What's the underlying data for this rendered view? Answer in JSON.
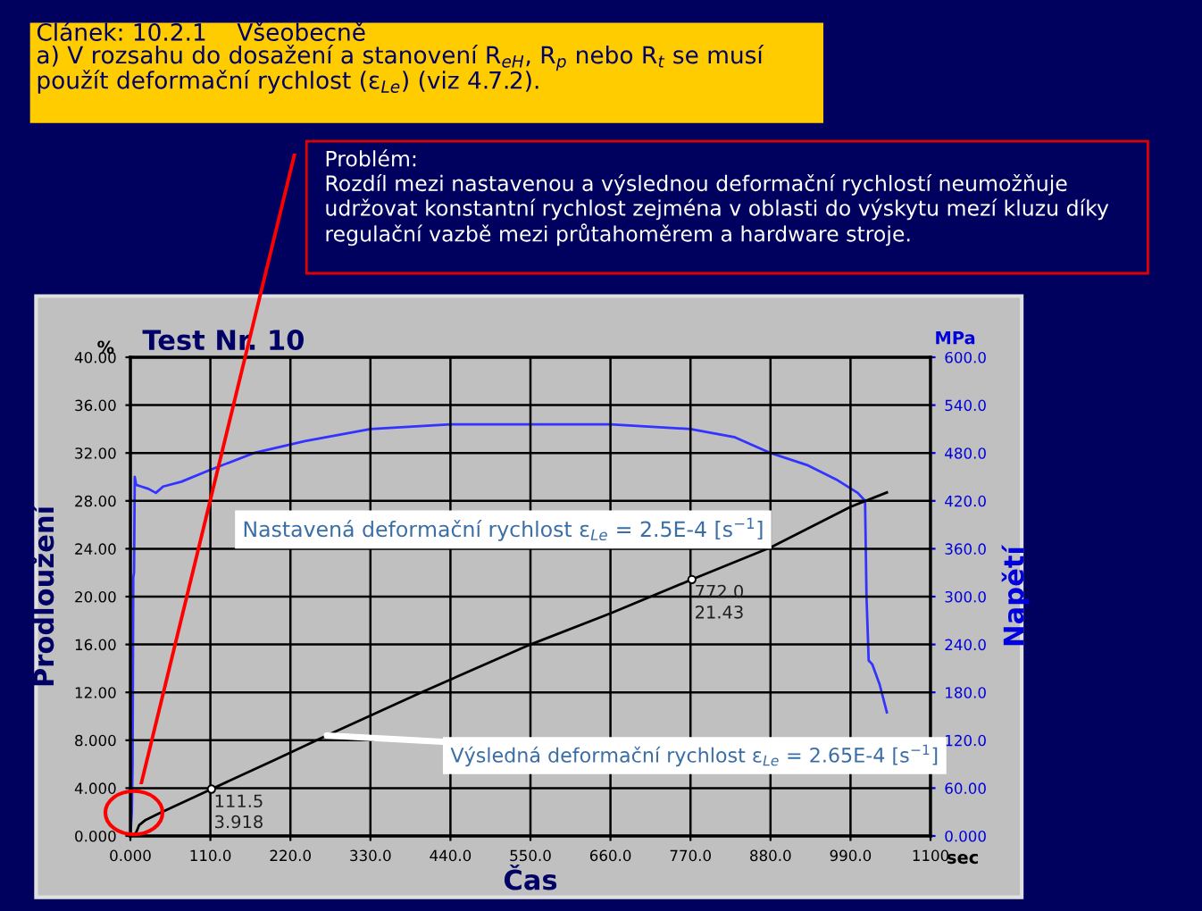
{
  "chart_data": {
    "type": "line",
    "title": "Test Nr. 10",
    "subtitle": "Článek: 10.2.1    Všeobecně\na) V rozsahu do dosažení a stanovení R$_{eH}$, R$_{p}$ nebo R$_{t}$ se musí\npoužít deformační rychlost (ε$_{Le}$) (viz 4.7.2).",
    "xlabel": "Čas",
    "ylabel": "Prodloužení",
    "y2label": "Napětí",
    "annotations": [
      "Problém:\nRozdíl mezi nastavenou a výslednou deformační rychlostí neumožňuje\nudržovat konstantní rychlost zejména v oblasti do výskytu mezí kluzu díky\nregulační vazbě mezi průtahoměrem a hardware stroje.",
      "%",
      "MPa",
      "sec",
      {
        "text": "111.5\n3.918",
        "x": 111.5,
        "y": 3.918
      },
      {
        "text": "772.0\n21.43",
        "x": 772,
        "y": 21.43
      },
      "Nastavená deformační rychlost ε$_{Le}$ = 2.5E-4 [s$^{−1}$]",
      {
        "text": "Výsledná deformační rychlost ε$_{Le}$ = 2.65E-4 [s$^{−1}$]",
        "x": 270,
        "y": 8.4
      }
    ],
    "series": [
      {
        "color": "#000000",
        "x": [
          0,
          3,
          8,
          12,
          20,
          40,
          111.5,
          200,
          270,
          400,
          550,
          660,
          772,
          880,
          990,
          1040
        ],
        "values": [
          0,
          0,
          0.3,
          0.9,
          1.3,
          1.9,
          3.918,
          6.4,
          8.4,
          12,
          16,
          18.6,
          21.43,
          24.1,
          27.5,
          28.7
        ]
      },
      {
        "color": "#3333ff",
        "axis": "y2",
        "x": [
          0,
          2,
          3,
          4,
          5,
          6,
          8,
          15,
          25,
          35,
          45,
          70,
          110,
          170,
          240,
          330,
          440,
          550,
          660,
          770,
          830,
          880,
          930,
          970,
          1000,
          1010,
          1012,
          1015,
          1020,
          1030,
          1040
        ],
        "values": [
          0,
          30,
          90,
          324,
          330,
          450,
          440,
          438,
          435,
          430,
          438,
          444,
          459,
          480,
          495,
          510,
          516,
          516,
          516,
          510,
          500,
          480,
          465,
          447,
          430,
          420,
          300,
          220,
          215,
          190,
          155
        ]
      }
    ],
    "xlim": [
      0,
      1100
    ],
    "xticks": [
      {
        "value": 0,
        "label": "0.000"
      },
      {
        "value": 110,
        "label": "110.0"
      },
      {
        "value": 220,
        "label": "220.0"
      },
      {
        "value": 330,
        "label": "330.0"
      },
      {
        "value": 440,
        "label": "440.0"
      },
      {
        "value": 550,
        "label": "550.0"
      },
      {
        "value": 660,
        "label": "660.0"
      },
      {
        "value": 770,
        "label": "770.0"
      },
      {
        "value": 880,
        "label": "880.0"
      },
      {
        "value": 990,
        "label": "990.0"
      },
      1100
    ],
    "ylim": [
      0,
      40
    ],
    "yticks": [
      {
        "value": 0,
        "label": "0.000"
      },
      {
        "value": 4,
        "label": "4.000"
      },
      {
        "value": 8,
        "label": "8.000"
      },
      {
        "value": 12,
        "label": "12.00"
      },
      {
        "value": 16,
        "label": "16.00"
      },
      {
        "value": 20,
        "label": "20.00"
      },
      {
        "value": 24,
        "label": "24.00"
      },
      {
        "value": 28,
        "label": "28.00"
      },
      {
        "value": 32,
        "label": "32.00"
      },
      {
        "value": 36,
        "label": "36.00"
      },
      {
        "value": 40,
        "label": "40.00"
      }
    ],
    "y2lim": [
      0,
      600
    ],
    "y2ticks": [
      {
        "value": 0,
        "label": "0.000"
      },
      {
        "value": 60,
        "label": "60.00"
      },
      {
        "value": 120,
        "label": "120.0"
      },
      {
        "value": 180,
        "label": "180.0"
      },
      {
        "value": 240,
        "label": "240.0"
      },
      {
        "value": 300,
        "label": "300.0"
      },
      {
        "value": 360,
        "label": "360.0"
      },
      {
        "value": 420,
        "label": "420.0"
      },
      {
        "value": 480,
        "label": "480.0"
      },
      {
        "value": 540,
        "label": "540.0"
      },
      {
        "value": 600,
        "label": "600.0"
      }
    ],
    "grid": true,
    "line_style": "solid",
    "marker": "none"
  }
}
